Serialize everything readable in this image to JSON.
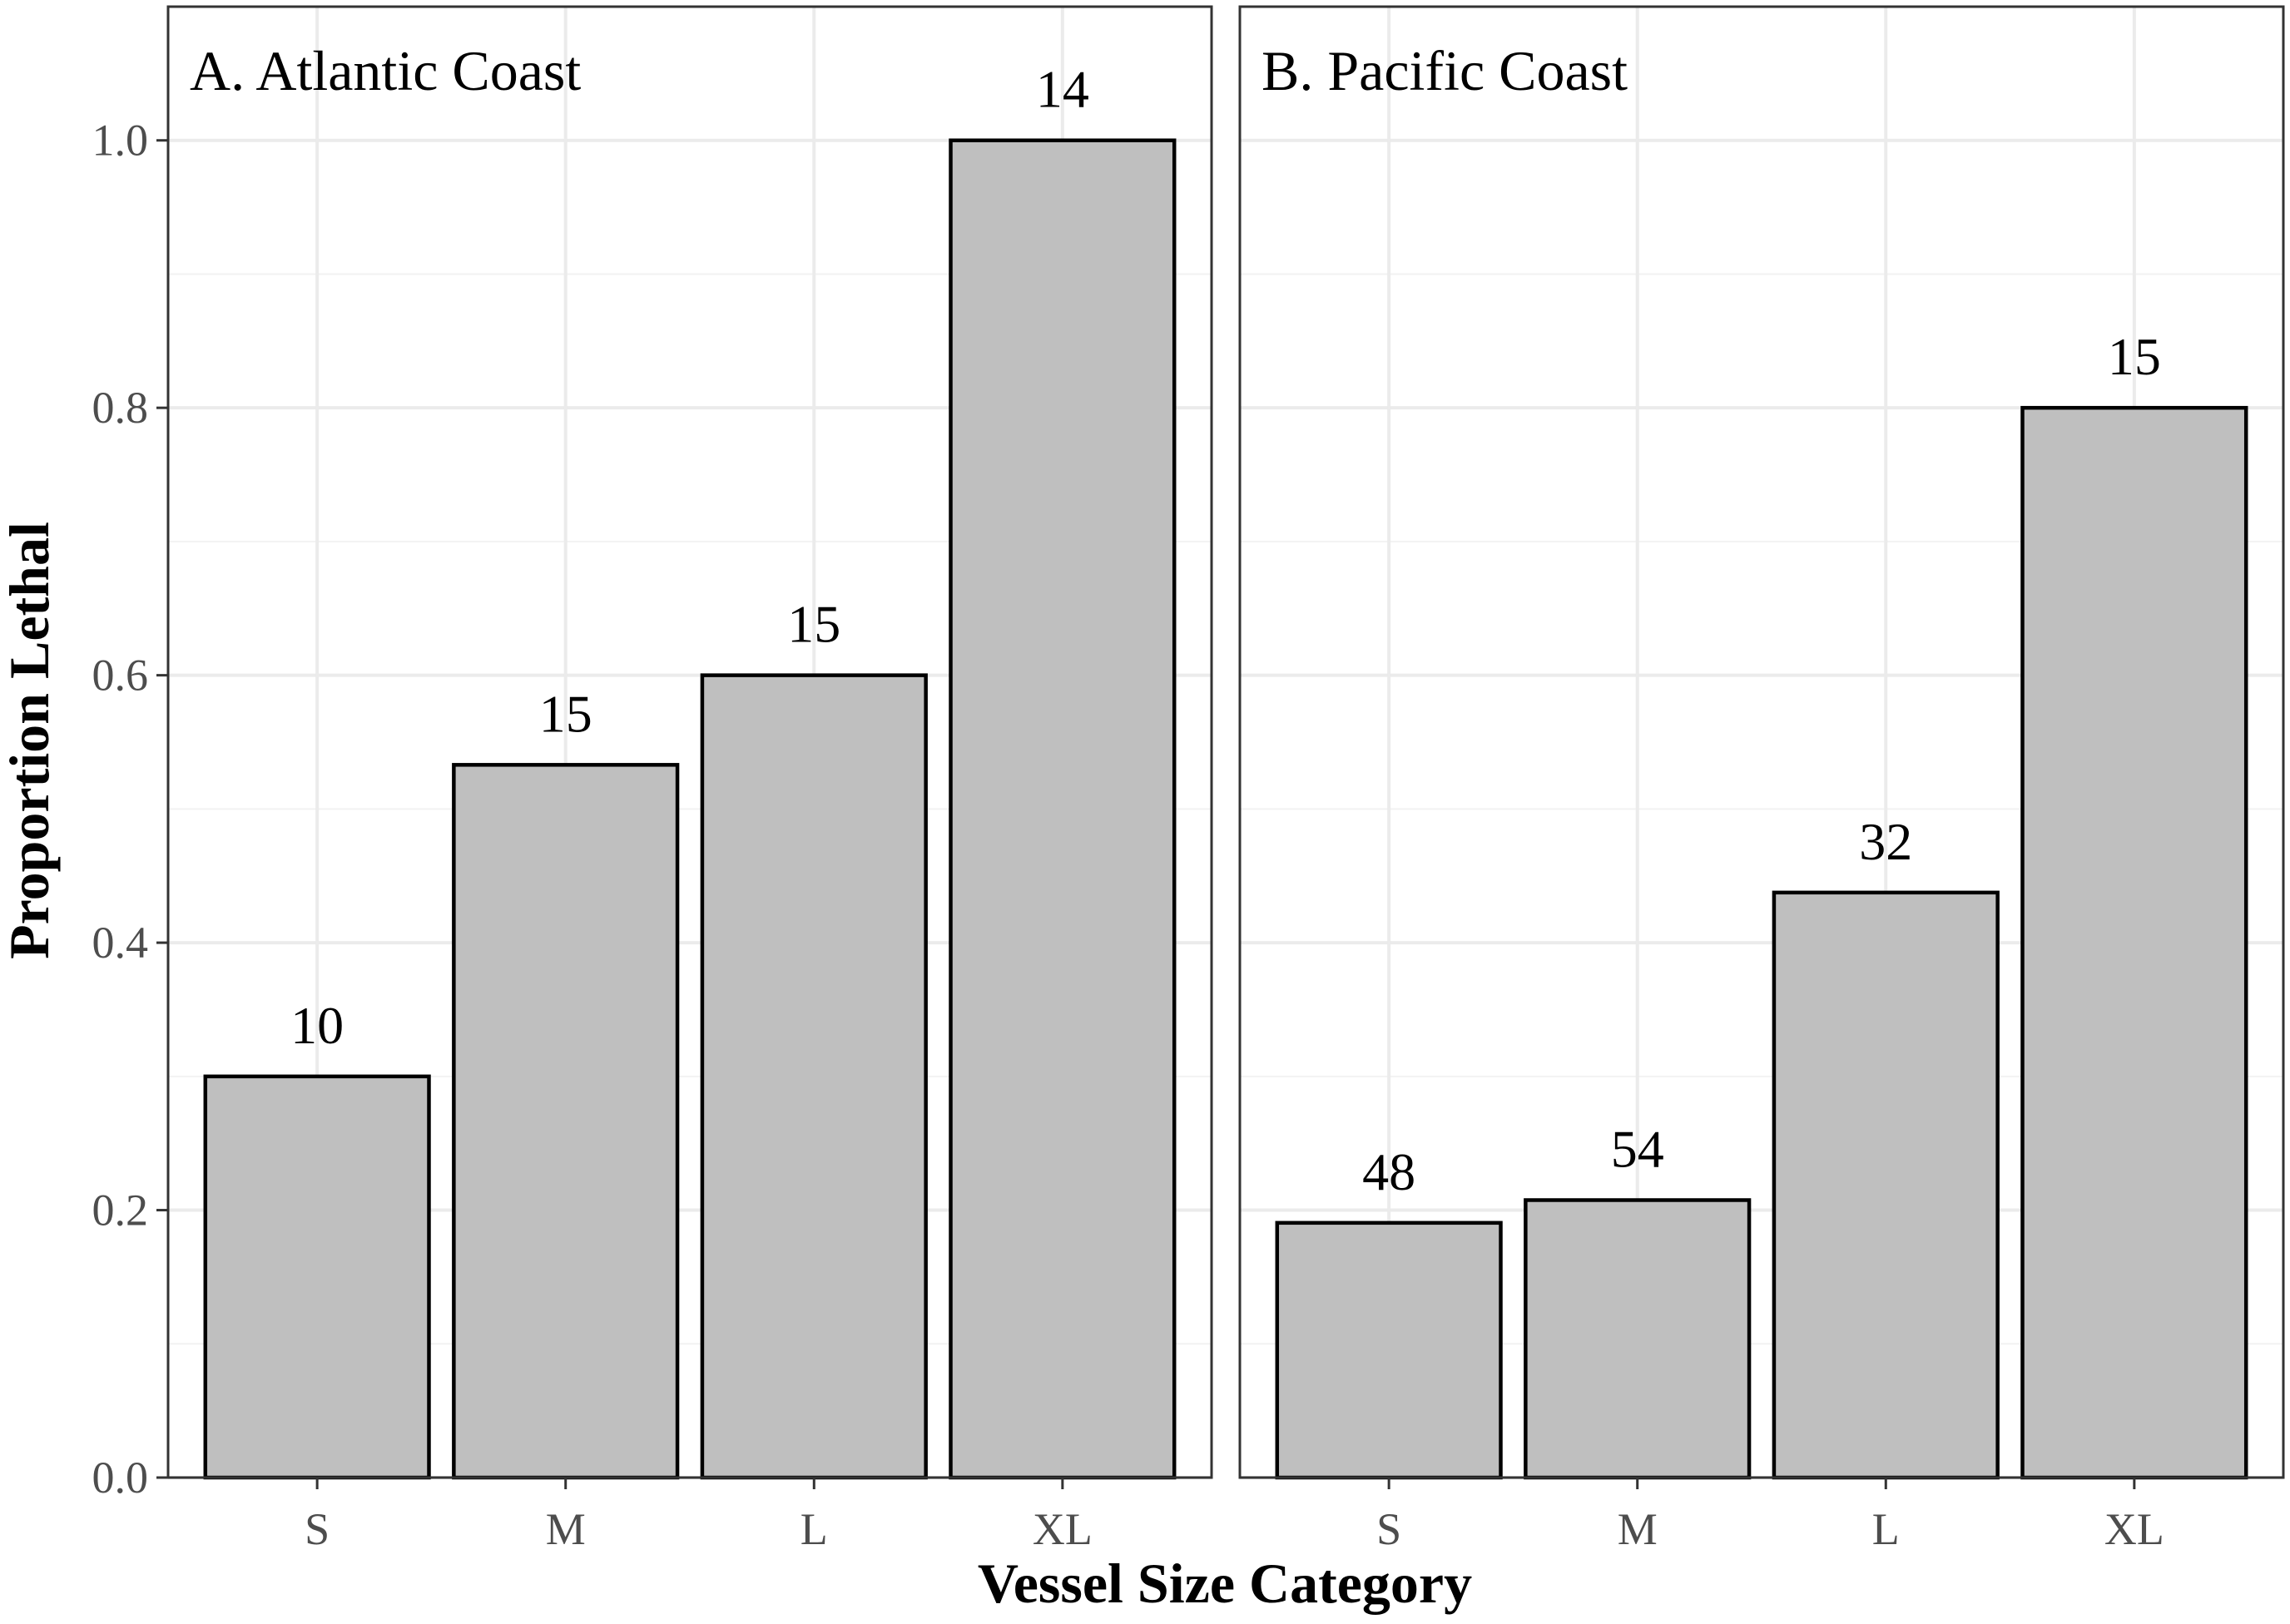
{
  "chart_data": {
    "type": "bar",
    "xlabel": "Vessel Size Category",
    "ylabel": "Proportion Lethal",
    "ylim": [
      0,
      1.1
    ],
    "yticks": [
      "0.0",
      "0.2",
      "0.4",
      "0.6",
      "0.8",
      "1.0"
    ],
    "categories": [
      "S",
      "M",
      "L",
      "XL"
    ],
    "grid": true,
    "bar_fill": "#bfbfbf",
    "panels": [
      {
        "title": "A. Atlantic Coast",
        "values": [
          0.3,
          0.533,
          0.6,
          1.0
        ],
        "labels": [
          "10",
          "15",
          "15",
          "14"
        ]
      },
      {
        "title": "B. Pacific Coast",
        "values": [
          0.1905,
          0.2075,
          0.4375,
          0.8
        ],
        "labels": [
          "48",
          "54",
          "32",
          "15"
        ]
      }
    ]
  }
}
